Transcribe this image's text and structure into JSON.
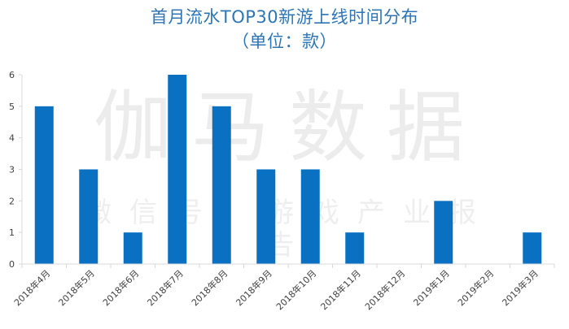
{
  "chart_data": {
    "type": "bar",
    "title": "首月流水TOP30新游上线时间分布",
    "subtitle": "（单位：款）",
    "categories": [
      "2018年4月",
      "2018年5月",
      "2018年6月",
      "2018年7月",
      "2018年8月",
      "2018年9月",
      "2018年10月",
      "2018年11月",
      "2018年12月",
      "2019年1月",
      "2019年2月",
      "2019年3月"
    ],
    "values": [
      5,
      3,
      1,
      6,
      5,
      3,
      3,
      1,
      0,
      2,
      0,
      1
    ],
    "ylim": [
      0,
      6
    ],
    "yticks": [
      0,
      1,
      2,
      3,
      4,
      5,
      6
    ],
    "grid": false,
    "legend": "none",
    "bar_color": "#0a70c1",
    "axis_color": "#d9d9d9",
    "tick_label_color": "#404040"
  },
  "watermark": {
    "main": "伽马数据",
    "sub": "微信号：游戏产业报告"
  }
}
